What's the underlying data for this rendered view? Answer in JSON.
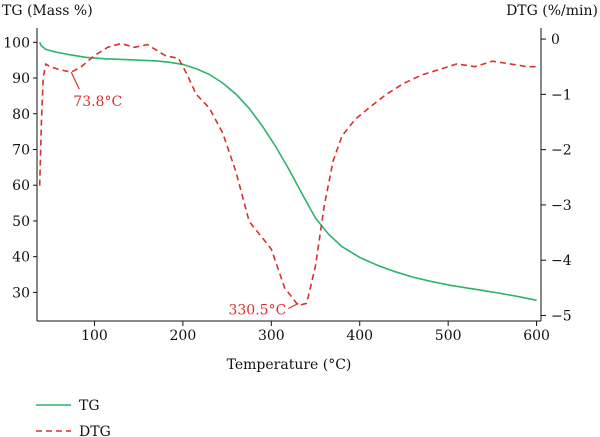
{
  "chart_data": {
    "type": "line",
    "xlabel": "Temperature (°C)",
    "ylabel_left": "TG (Mass %)",
    "ylabel_right": "DTG (%/min)",
    "xlim": [
      35,
      605
    ],
    "ylim_left": [
      22,
      104
    ],
    "ylim_right": [
      -5.1,
      0.2
    ],
    "x_ticks": [
      100,
      200,
      300,
      400,
      500,
      600
    ],
    "y_left_ticks": [
      30,
      40,
      50,
      60,
      70,
      80,
      90,
      100
    ],
    "y_right_ticks": [
      0,
      -1,
      -2,
      -3,
      -4,
      -5
    ],
    "legend_position": "bottom-left",
    "colors": {
      "TG": "#2db36a",
      "DTG": "#d9312e"
    },
    "series": [
      {
        "name": "TG",
        "axis": "left",
        "style": "solid",
        "x": [
          38,
          40,
          45,
          55,
          70,
          90,
          110,
          130,
          150,
          170,
          185,
          200,
          215,
          230,
          245,
          260,
          275,
          290,
          305,
          320,
          335,
          350,
          365,
          380,
          400,
          420,
          440,
          460,
          480,
          500,
          520,
          540,
          560,
          580,
          600
        ],
        "y": [
          100,
          99,
          98,
          97.3,
          96.6,
          95.8,
          95.4,
          95.2,
          95,
          94.8,
          94.4,
          93.8,
          92.6,
          91,
          88.6,
          85.5,
          81.5,
          76.5,
          70.8,
          64.4,
          57.5,
          50.8,
          46.2,
          42.8,
          39.8,
          37.6,
          35.8,
          34.3,
          33.1,
          32.1,
          31.3,
          30.5,
          29.7,
          28.8,
          27.8
        ]
      },
      {
        "name": "DTG",
        "axis": "right",
        "style": "dashed",
        "x": [
          38,
          40,
          42,
          45,
          50,
          60,
          73.8,
          85,
          100,
          115,
          130,
          145,
          160,
          170,
          180,
          195,
          205,
          215,
          230,
          245,
          260,
          275,
          285,
          300,
          315,
          330.5,
          340,
          350,
          360,
          370,
          380,
          395,
          410,
          430,
          450,
          470,
          490,
          510,
          530,
          550,
          570,
          590,
          600
        ],
        "y": [
          -2.65,
          -1.5,
          -0.7,
          -0.45,
          -0.5,
          -0.55,
          -0.6,
          -0.5,
          -0.3,
          -0.15,
          -0.08,
          -0.15,
          -0.1,
          -0.2,
          -0.3,
          -0.35,
          -0.65,
          -1.0,
          -1.25,
          -1.7,
          -2.4,
          -3.3,
          -3.5,
          -3.8,
          -4.5,
          -4.82,
          -4.78,
          -4.1,
          -3.0,
          -2.2,
          -1.75,
          -1.45,
          -1.25,
          -1.0,
          -0.8,
          -0.65,
          -0.55,
          -0.45,
          -0.5,
          -0.4,
          -0.45,
          -0.5,
          -0.5
        ]
      }
    ],
    "annotations": [
      {
        "text": "73.8°C",
        "x": 73.8,
        "y": -0.6,
        "series": "DTG"
      },
      {
        "text": "330.5°C",
        "x": 330.5,
        "y": -4.82,
        "series": "DTG"
      }
    ]
  }
}
